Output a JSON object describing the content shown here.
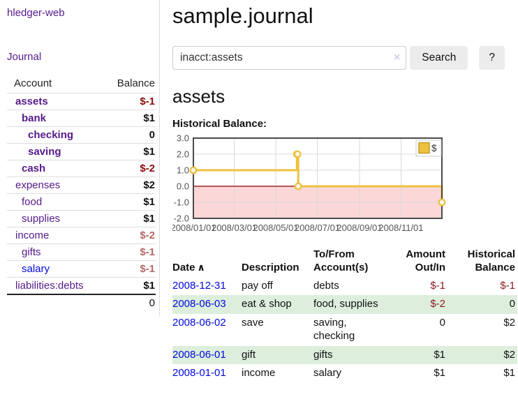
{
  "brand": {
    "label": "hledger-web"
  },
  "nav": {
    "journal": "Journal"
  },
  "header": {
    "title": "sample.journal"
  },
  "search": {
    "value": "inacct:assets",
    "clear_icon": "×",
    "search_button": "Search",
    "help_button": "?"
  },
  "account_page": {
    "heading": "assets",
    "chart_label": "Historical Balance:"
  },
  "sidebar_accounts": {
    "columns": {
      "account": "Account",
      "balance": "Balance"
    },
    "rows": [
      {
        "name": "assets",
        "balance": "$-1",
        "indent": 0,
        "matched": true,
        "link_color": "purple",
        "balance_tone": "neg-strong"
      },
      {
        "name": "bank",
        "balance": "$1",
        "indent": 1,
        "matched": true,
        "link_color": "purple",
        "balance_tone": "pos"
      },
      {
        "name": "checking",
        "balance": "0",
        "indent": 2,
        "matched": true,
        "link_color": "purple",
        "balance_tone": "pos"
      },
      {
        "name": "saving",
        "balance": "$1",
        "indent": 2,
        "matched": true,
        "link_color": "purple",
        "balance_tone": "pos"
      },
      {
        "name": "cash",
        "balance": "$-2",
        "indent": 1,
        "matched": true,
        "link_color": "purple",
        "balance_tone": "neg-strong"
      },
      {
        "name": "expenses",
        "balance": "$2",
        "indent": 0,
        "matched": false,
        "link_color": "purple",
        "balance_tone": "pos"
      },
      {
        "name": "food",
        "balance": "$1",
        "indent": 1,
        "matched": false,
        "link_color": "purple",
        "balance_tone": "pos"
      },
      {
        "name": "supplies",
        "balance": "$1",
        "indent": 1,
        "matched": false,
        "link_color": "purple",
        "balance_tone": "pos"
      },
      {
        "name": "income",
        "balance": "$-2",
        "indent": 0,
        "matched": false,
        "link_color": "purple",
        "balance_tone": "neg-soft"
      },
      {
        "name": "gifts",
        "balance": "$-1",
        "indent": 1,
        "matched": false,
        "link_color": "purple",
        "balance_tone": "neg-soft"
      },
      {
        "name": "salary",
        "balance": "$-1",
        "indent": 1,
        "matched": false,
        "link_color": "blue",
        "balance_tone": "neg-soft"
      },
      {
        "name": "liabilities:debts",
        "balance": "$1",
        "indent": 0,
        "matched": false,
        "link_color": "purple",
        "balance_tone": "pos"
      }
    ],
    "total": "0"
  },
  "chart_data": {
    "type": "line",
    "step": true,
    "title": "Historical Balance:",
    "xrange": [
      "2008-01-01",
      "2008-12-31"
    ],
    "ylim": [
      -2,
      3
    ],
    "yticks": [
      {
        "v": 3,
        "label": "3.0"
      },
      {
        "v": 2,
        "label": "2.0"
      },
      {
        "v": 1,
        "label": "1.0"
      },
      {
        "v": 0,
        "label": "0.0"
      },
      {
        "v": -1,
        "label": "-1.0"
      },
      {
        "v": -2,
        "label": "-2.0"
      }
    ],
    "xticks": [
      {
        "date": "2008-01-01",
        "label": "2008/01/01"
      },
      {
        "date": "2008-03-01",
        "label": "2008/03/01"
      },
      {
        "date": "2008-05-01",
        "label": "2008/05/01"
      },
      {
        "date": "2008-07-01",
        "label": "2008/07/01"
      },
      {
        "date": "2008-09-01",
        "label": "2008/09/01"
      },
      {
        "date": "2008-11-01",
        "label": "2008/11/01"
      }
    ],
    "series": [
      {
        "name": "$",
        "color": "#EDC240",
        "points": [
          {
            "date": "2008-01-01",
            "y": 1
          },
          {
            "date": "2008-06-01",
            "y": 2
          },
          {
            "date": "2008-06-02",
            "y": 2
          },
          {
            "date": "2008-06-03",
            "y": 0
          },
          {
            "date": "2008-12-31",
            "y": -1
          }
        ]
      }
    ],
    "legend": {
      "label": "$",
      "position": "top-right"
    },
    "grid": true,
    "colors": {
      "negative_region": "#fbd7d7",
      "zero_line": "#8b0000",
      "grid": "#dadada",
      "border": "#4a4a4a",
      "tick_text": "#545454"
    }
  },
  "transactions": {
    "sort_icon": "∧",
    "columns": {
      "date": "Date",
      "description": "Description",
      "accounts": "To/From Account(s)",
      "amount": "Amount Out/In",
      "balance": "Historical Balance"
    },
    "rows": [
      {
        "date": "2008-12-31",
        "description": "pay off",
        "accounts": "debts",
        "amount": "$-1",
        "balance": "$-1"
      },
      {
        "date": "2008-06-03",
        "description": "eat & shop",
        "accounts": "food, supplies",
        "amount": "$-2",
        "balance": "0"
      },
      {
        "date": "2008-06-02",
        "description": "save",
        "accounts": "saving, checking",
        "amount": "0",
        "balance": "$2"
      },
      {
        "date": "2008-06-01",
        "description": "gift",
        "accounts": "gifts",
        "amount": "$1",
        "balance": "$2"
      },
      {
        "date": "2008-01-01",
        "description": "income",
        "accounts": "salary",
        "amount": "$1",
        "balance": "$1"
      }
    ]
  }
}
